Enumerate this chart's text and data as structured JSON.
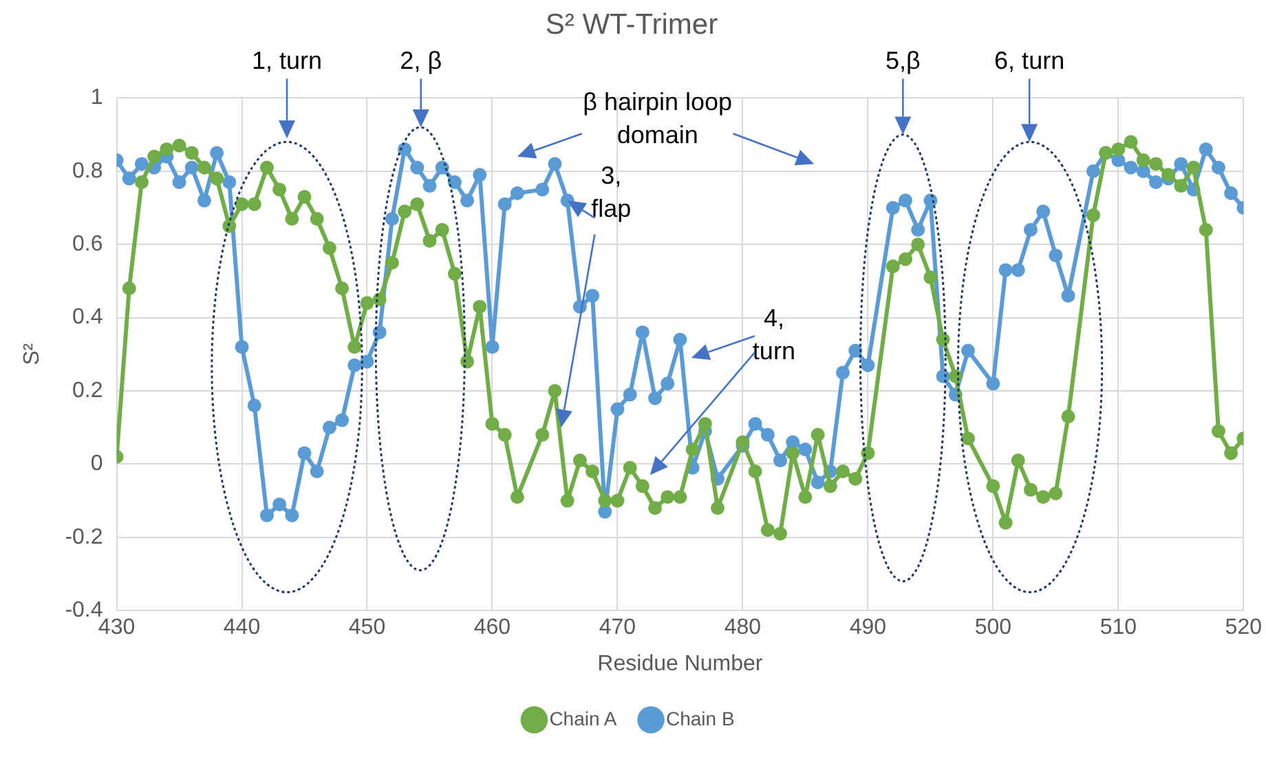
{
  "chart_data": {
    "type": "line",
    "title": "S² WT-Trimer",
    "xlabel": "Residue Number",
    "ylabel": "S²",
    "x": [
      430,
      431,
      432,
      433,
      434,
      435,
      436,
      437,
      438,
      439,
      440,
      441,
      442,
      443,
      444,
      445,
      446,
      447,
      448,
      449,
      450,
      451,
      452,
      453,
      454,
      455,
      456,
      457,
      458,
      459,
      460,
      461,
      462,
      464,
      465,
      466,
      467,
      468,
      469,
      470,
      471,
      472,
      473,
      474,
      475,
      476,
      477,
      478,
      480,
      481,
      482,
      483,
      484,
      485,
      486,
      487,
      488,
      489,
      490,
      492,
      493,
      494,
      495,
      496,
      497,
      498,
      500,
      501,
      502,
      503,
      504,
      505,
      506,
      508,
      509,
      510,
      511,
      512,
      513,
      514,
      515,
      516,
      517,
      518,
      519,
      520
    ],
    "series": [
      {
        "name": "Chain A",
        "color": "#70ad47",
        "values": [
          0.02,
          0.48,
          0.77,
          0.84,
          0.86,
          0.87,
          0.85,
          0.81,
          0.78,
          0.65,
          0.71,
          0.71,
          0.81,
          0.75,
          0.67,
          0.73,
          0.67,
          0.59,
          0.48,
          0.32,
          0.44,
          0.45,
          0.55,
          0.69,
          0.71,
          0.61,
          0.64,
          0.52,
          0.28,
          0.43,
          0.11,
          0.08,
          -0.09,
          0.08,
          0.2,
          -0.1,
          0.01,
          -0.02,
          -0.1,
          -0.1,
          -0.01,
          -0.06,
          -0.12,
          -0.09,
          -0.09,
          0.04,
          0.11,
          -0.12,
          0.06,
          -0.02,
          -0.18,
          -0.19,
          0.03,
          -0.09,
          0.08,
          -0.06,
          -0.02,
          -0.04,
          0.03,
          0.54,
          0.56,
          0.6,
          0.51,
          0.34,
          0.24,
          0.07,
          -0.06,
          -0.16,
          0.01,
          -0.07,
          -0.09,
          -0.08,
          0.13,
          0.68,
          0.85,
          0.86,
          0.88,
          0.83,
          0.82,
          0.79,
          0.76,
          0.81,
          0.64,
          0.09,
          0.03,
          0.07
        ]
      },
      {
        "name": "Chain B",
        "color": "#5b9bd5",
        "values": [
          0.83,
          0.78,
          0.82,
          0.81,
          0.84,
          0.77,
          0.81,
          0.72,
          0.85,
          0.77,
          0.32,
          0.16,
          -0.14,
          -0.11,
          -0.14,
          0.03,
          -0.02,
          0.1,
          0.12,
          0.27,
          0.28,
          0.36,
          0.67,
          0.86,
          0.81,
          0.76,
          0.81,
          0.77,
          0.72,
          0.79,
          0.32,
          0.71,
          0.74,
          0.75,
          0.82,
          0.72,
          0.43,
          0.46,
          -0.13,
          0.15,
          0.19,
          0.36,
          0.18,
          0.22,
          0.34,
          -0.01,
          0.09,
          -0.04,
          0.05,
          0.11,
          0.08,
          0.01,
          0.06,
          0.04,
          -0.05,
          -0.02,
          0.25,
          0.31,
          0.27,
          0.7,
          0.72,
          0.64,
          0.72,
          0.24,
          0.19,
          0.31,
          0.22,
          0.53,
          0.53,
          0.64,
          0.69,
          0.57,
          0.46,
          0.8,
          0.85,
          0.83,
          0.81,
          0.8,
          0.77,
          0.78,
          0.82,
          0.75,
          0.86,
          0.81,
          0.74,
          0.7
        ]
      }
    ],
    "xlim": [
      430,
      520
    ],
    "xticks": [
      430,
      440,
      450,
      460,
      470,
      480,
      490,
      500,
      510,
      520
    ],
    "ylim": [
      -0.4,
      1
    ],
    "yticks": [
      -0.4,
      -0.2,
      0,
      0.2,
      0.4,
      0.6,
      0.8,
      1
    ],
    "grid": true,
    "legend": "bottom",
    "marker": "circle",
    "line_style": "solid",
    "annotations": [
      "1, turn",
      "2, β",
      "β hairpin loop domain",
      {
        "text": "3, flap",
        "x": 466,
        "y": 0.72
      },
      "4, turn",
      "5,β",
      "6, turn"
    ]
  }
}
